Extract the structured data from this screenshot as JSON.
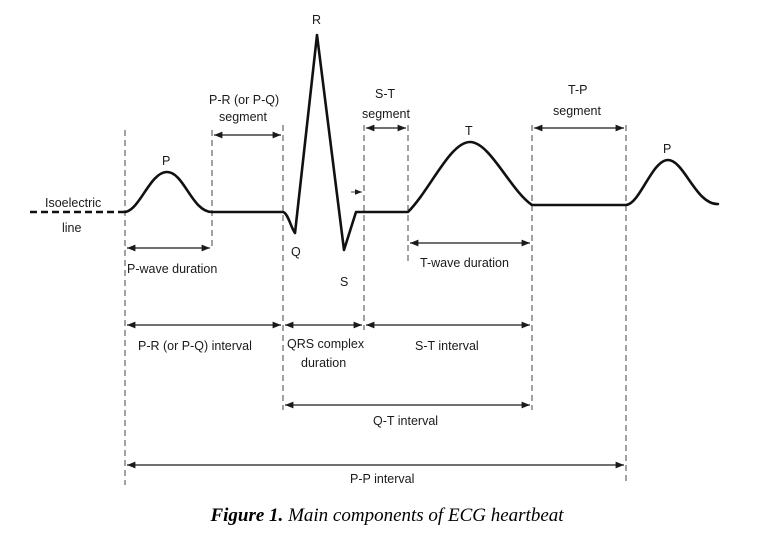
{
  "labels": {
    "isoelectric_1": "Isoelectric",
    "isoelectric_2": "line",
    "pr_segment_1": "P-R (or P-Q)",
    "pr_segment_2": "segment",
    "st_segment_1": "S-T",
    "st_segment_2": "segment",
    "tp_segment_1": "T-P",
    "tp_segment_2": "segment",
    "p_wave_duration": "P-wave duration",
    "t_wave_duration": "T-wave duration",
    "pr_interval": "P-R (or P-Q) interval",
    "qrs_duration_1": "QRS complex",
    "qrs_duration_2": "duration",
    "st_interval": "S-T interval",
    "qt_interval": "Q-T interval",
    "pp_interval": "P-P interval"
  },
  "peaks": {
    "p1": "P",
    "q": "Q",
    "r": "R",
    "s": "S",
    "t": "T",
    "p2": "P"
  },
  "caption": {
    "bold": "Figure 1.",
    "rest": " Main components of ECG heartbeat"
  }
}
